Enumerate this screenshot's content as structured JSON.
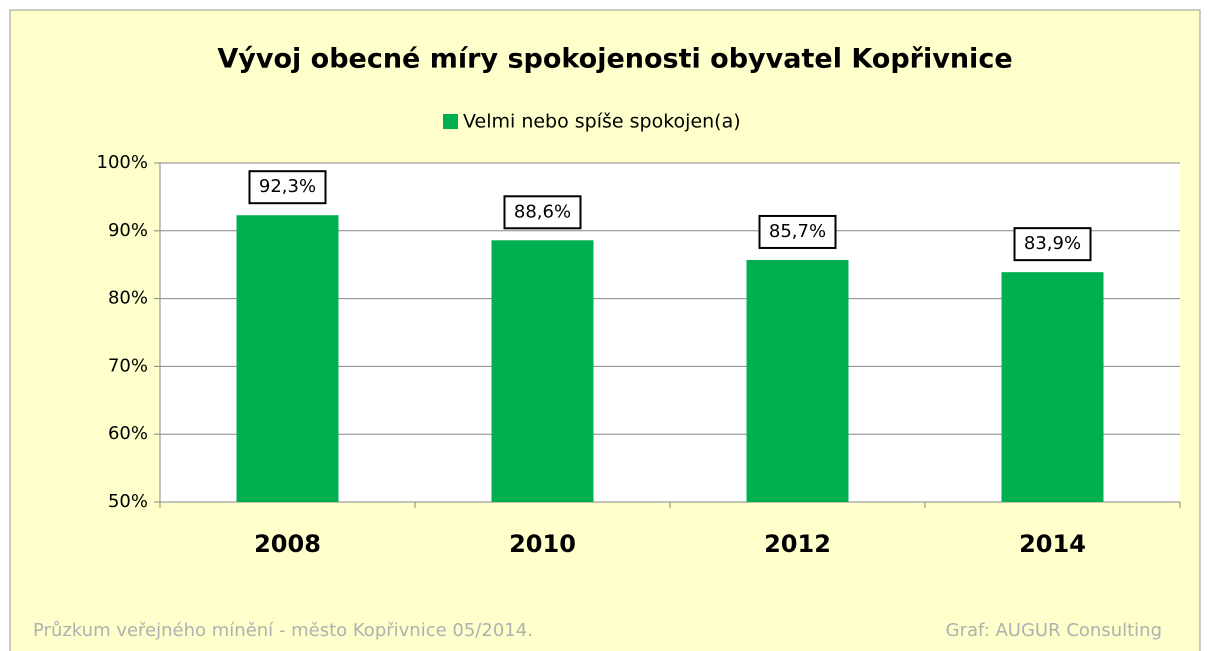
{
  "chart_data": {
    "type": "bar",
    "title": "Vývoj obecné míry spokojenosti obyvatel Kopřivnice",
    "categories": [
      "2008",
      "2010",
      "2012",
      "2014"
    ],
    "series": [
      {
        "name": "Velmi nebo spíše spokojen(a)",
        "color": "#00b050",
        "values": [
          92.3,
          88.6,
          85.7,
          83.9
        ],
        "value_labels": [
          "92,3%",
          "88,6%",
          "85,7%",
          "83,9%"
        ]
      }
    ],
    "ylim": [
      50,
      100
    ],
    "yticks": [
      {
        "value": 50,
        "label": "50%"
      },
      {
        "value": 60,
        "label": "60%"
      },
      {
        "value": 70,
        "label": "70%"
      },
      {
        "value": 80,
        "label": "80%"
      },
      {
        "value": 90,
        "label": "90%"
      },
      {
        "value": 100,
        "label": "100%"
      }
    ],
    "grid": true,
    "legend": "top",
    "source": "Průzkum veřejného mínění - město Kopřivnice  05/2014.",
    "credit": "Graf: AUGUR Consulting"
  }
}
